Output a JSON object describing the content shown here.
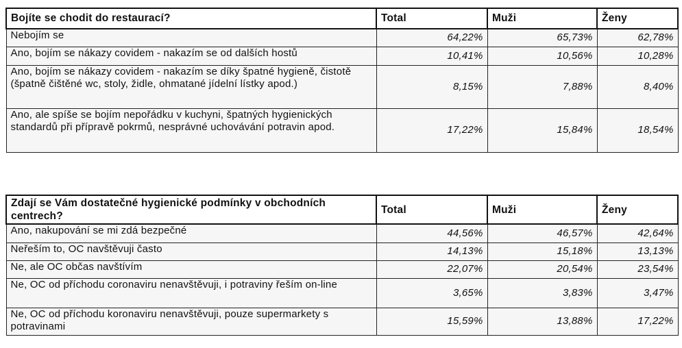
{
  "chart_data": [
    {
      "type": "table",
      "title": "Bojíte se chodit do restaurací?",
      "columns": [
        "Total",
        "Muži",
        "Ženy"
      ],
      "rows": [
        {
          "label": "Nebojím se",
          "values": [
            "64,22%",
            "65,73%",
            "62,78%"
          ]
        },
        {
          "label": "Ano, bojím se nákazy covidem - nakazím se od dalších hostů",
          "values": [
            "10,41%",
            "10,56%",
            "10,28%"
          ]
        },
        {
          "label": "Ano, bojím se nákazy covidem - nakazím se díky špatné hygieně, čistotě (špatně čištěné wc, stoly, židle, ohmatané jídelní lístky apod.)",
          "values": [
            "8,15%",
            "7,88%",
            "8,40%"
          ]
        },
        {
          "label": "Ano, ale spíše se bojím nepořádku v kuchyni, špatných hygienických standardů při přípravě pokrmů, nesprávné uchovávání potravin apod.",
          "values": [
            "17,22%",
            "15,84%",
            "18,54%"
          ]
        }
      ]
    },
    {
      "type": "table",
      "title": "Zdají se Vám dostatečné hygienické podmínky v obchodních centrech?",
      "columns": [
        "Total",
        "Muži",
        "Ženy"
      ],
      "rows": [
        {
          "label": "Ano, nakupování se mi zdá bezpečné",
          "values": [
            "44,56%",
            "46,57%",
            "42,64%"
          ]
        },
        {
          "label": "Neřeším to, OC navštěvuji často",
          "values": [
            "14,13%",
            "15,18%",
            "13,13%"
          ]
        },
        {
          "label": "Ne, ale OC občas navštívím",
          "values": [
            "22,07%",
            "20,54%",
            "23,54%"
          ]
        },
        {
          "label": "Ne, OC od příchodu coronaviru nenavštěvuji, i potraviny řeším on-line",
          "values": [
            "3,65%",
            "3,83%",
            "3,47%"
          ]
        },
        {
          "label": "Ne, OC od příchodu koronaviru nenavštěvuji, pouze supermarkety s potravinami",
          "values": [
            "15,59%",
            "13,88%",
            "17,22%"
          ]
        }
      ]
    }
  ]
}
